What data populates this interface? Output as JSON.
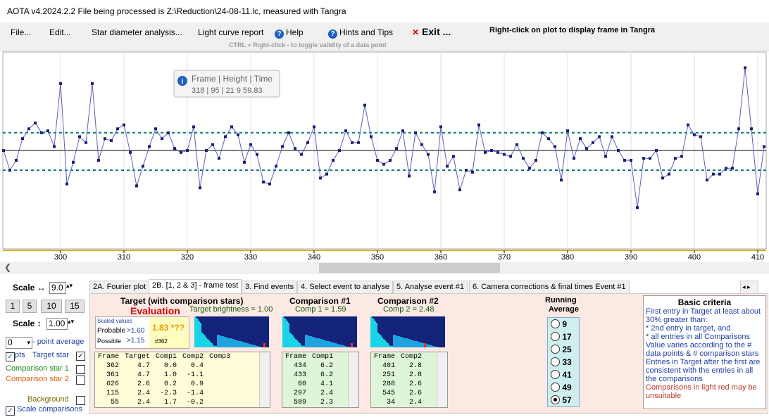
{
  "window": {
    "title": "AOTA v4.2024.2.2    File being processed is Z:\\Reduction\\24-08-11.lc, measured with Tangra"
  },
  "menu": {
    "file": "File...",
    "edit": "Edit...",
    "star_diameter": "Star diameter analysis...",
    "light_curve": "Light curve report",
    "help": "Help",
    "hints": "Hints and Tips",
    "exit": "Exit ...",
    "right_click_hint": "Right-click on plot to display frame in Tangra",
    "toggle_hint": "CTRL + Right-click   -  to toggle validity of a data point"
  },
  "tooltip": {
    "title": "Frame | Height | Time",
    "value": "318 | 95 | 21  9 59.83"
  },
  "chart_data": {
    "type": "line",
    "x_ticks": [
      "300",
      "310",
      "320",
      "330",
      "340",
      "350",
      "360",
      "370",
      "380",
      "390",
      "400",
      "410"
    ],
    "x_first": 291,
    "ylim": [
      0,
      100
    ],
    "mean": 50,
    "upper_band": 59,
    "lower_band": 40,
    "values": [
      50,
      40,
      45,
      56,
      61,
      64,
      59,
      60,
      52,
      84,
      33,
      44,
      57,
      54,
      84,
      45,
      56,
      55,
      61,
      63,
      49,
      32,
      42,
      52,
      61,
      56,
      59,
      51,
      49,
      50,
      62,
      31,
      50,
      53,
      46,
      57,
      62,
      58,
      44,
      53,
      48,
      34,
      33,
      42,
      52,
      59,
      51,
      48,
      54,
      62,
      36,
      38,
      45,
      50,
      60,
      54,
      54,
      73,
      57,
      45,
      43,
      45,
      51,
      60,
      37,
      59,
      53,
      48,
      29,
      62,
      42,
      47,
      30,
      40,
      39,
      63,
      49,
      50,
      49,
      48,
      47,
      53,
      46,
      41,
      45,
      59,
      56,
      52,
      35,
      60,
      46,
      56,
      51,
      54,
      57,
      47,
      57,
      50,
      45,
      45,
      21,
      46,
      46,
      50,
      36,
      38,
      46,
      47,
      63,
      58,
      57,
      35,
      38,
      38,
      41,
      41,
      61,
      92,
      61,
      28,
      52,
      65,
      47,
      43,
      54,
      35,
      46,
      44,
      47,
      49,
      55,
      53,
      55,
      57,
      45,
      52,
      62,
      50,
      61,
      53,
      59,
      60,
      63,
      45,
      34,
      40,
      39,
      32,
      26,
      35,
      47,
      49,
      33,
      34,
      40,
      46,
      69,
      37,
      40,
      40,
      54,
      57,
      45,
      52
    ],
    "x_labels_note": ""
  },
  "bottom": {
    "scale_h_label": "Scale ↔",
    "scale_h_value": "9.0",
    "scale_v_label": "Scale ↕",
    "scale_v_value": "1.00",
    "scale_buttons": [
      "1",
      "5",
      "10",
      "15"
    ],
    "point_avg_value": "0",
    "point_avg_label": "- point average",
    "pts_label": "pts",
    "target_star_label": "Target star",
    "comp1_label": "Comparison star 1",
    "comp2_label": "Comparison star 2",
    "background_label": "Background",
    "scale_comparisons_label": "Scale comparisons",
    "tabs": [
      "2A. Fourier plot",
      "2B. [1, 2 & 3] - frame test",
      "3. Find events",
      "4. Select event to analyse",
      "5. Analyse event #1",
      "6. Camera corrections & final times Event #1"
    ],
    "target": {
      "heading": "Target (with comparison stars)",
      "evaluation": "Evaluation",
      "brightness": "Target  brightness = 1.00",
      "scaled_values": "Scaled values",
      "probable": "Probable",
      "probable_val": ">1.60",
      "possible": "Possible",
      "possible_val": ">1.15",
      "result": "1.83 *??",
      "result_id": "#362",
      "columns": [
        "Frame",
        "Target",
        "Comp1",
        "Comp2",
        "Comp3"
      ],
      "rows": [
        [
          "362",
          "4.7",
          "0.0",
          "0.4",
          ""
        ],
        [
          "361",
          "4.7",
          "1.0",
          "-1.1",
          ""
        ],
        [
          "626",
          "2.6",
          "0.2",
          "0.9",
          ""
        ],
        [
          "115",
          "2.4",
          "-2.3",
          "-1.4",
          ""
        ],
        [
          "55",
          "2.4",
          "1.7",
          "-0.2",
          ""
        ]
      ]
    },
    "comp1": {
      "heading": "Comparison #1",
      "sub": "Comp 1 = 1.59",
      "columns": [
        "Frame",
        "Comp1"
      ],
      "rows": [
        [
          "434",
          "6.2"
        ],
        [
          "433",
          "6.2"
        ],
        [
          "60",
          "4.1"
        ],
        [
          "297",
          "2.4"
        ],
        [
          "589",
          "2.3"
        ]
      ]
    },
    "comp2": {
      "heading": "Comparison #2",
      "sub": "Comp 2 = 2.48",
      "columns": [
        "Frame",
        "Comp2"
      ],
      "rows": [
        [
          "401",
          "2.8"
        ],
        [
          "251",
          "2.8"
        ],
        [
          "288",
          "2.6"
        ],
        [
          "545",
          "2.6"
        ],
        [
          "34",
          "2.4"
        ]
      ]
    },
    "running": {
      "heading1": "Running",
      "heading2": "Average",
      "options": [
        "9",
        "17",
        "25",
        "33",
        "41",
        "49",
        "57"
      ],
      "selected": "57"
    },
    "criteria": {
      "title": "Basic criteria",
      "lines": [
        {
          "text": "First entry in Target at least about 30% greater than:",
          "color": "#1d3fa5"
        },
        {
          "text": "*  2nd  entry in target, and",
          "color": "#1d3fa5"
        },
        {
          "text": "*  all entries in all Comparisons",
          "color": "#1d3fa5"
        },
        {
          "text": "Value varies according to the # data points & # comparison stars",
          "color": "#1d3fa5"
        },
        {
          "text": "Entries in Target after the first are consistent with the entries in all the comparisons",
          "color": "#1d3fa5"
        },
        {
          "text": "Comparisons in light red may be unsuitable",
          "color": "#c0392b"
        }
      ]
    }
  }
}
